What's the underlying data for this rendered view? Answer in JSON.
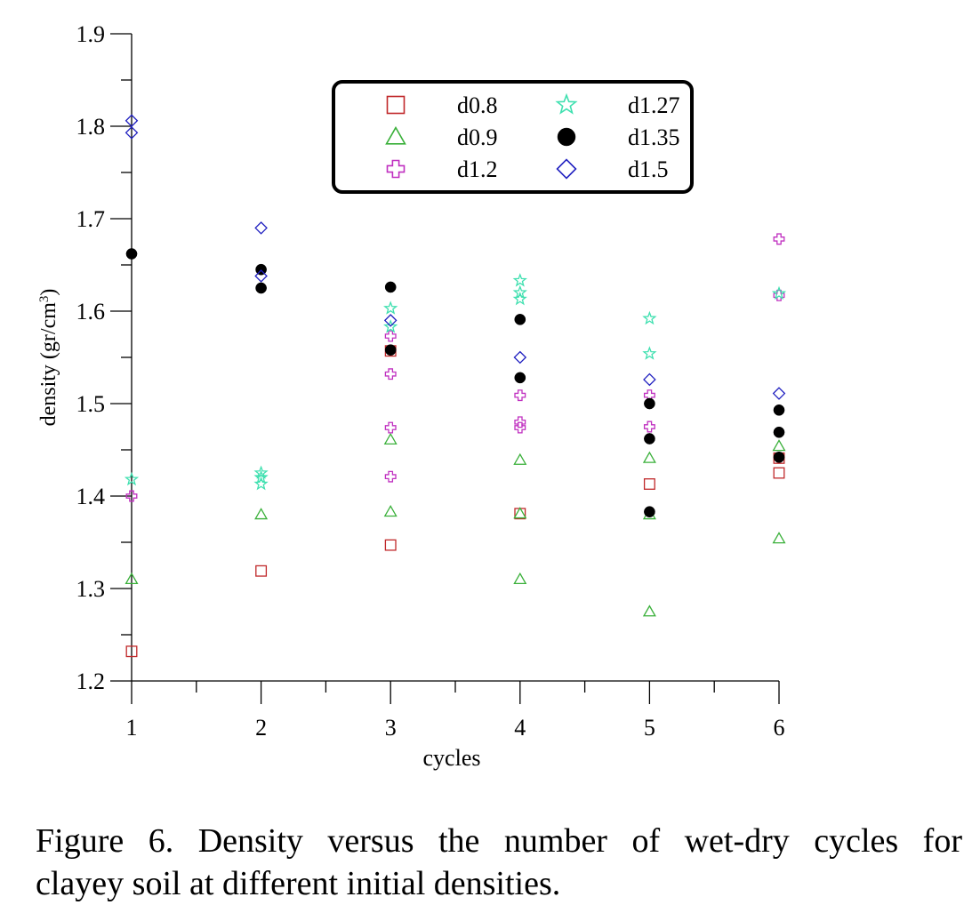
{
  "chart_data": {
    "type": "scatter",
    "xlabel": "cycles",
    "ylabel": "density (gr/cm",
    "ylabel_sup": "3",
    "ylabel_suffix": ")",
    "xlim": [
      1,
      6
    ],
    "ylim": [
      1.2,
      1.9
    ],
    "x_ticks": [
      "1",
      "2",
      "3",
      "4",
      "5",
      "6"
    ],
    "y_ticks": [
      "1.2",
      "1.3",
      "1.4",
      "1.5",
      "1.6",
      "1.7",
      "1.8",
      "1.9"
    ],
    "grid": false,
    "legend_position": "top-center",
    "series": [
      {
        "name": "d0.8",
        "marker": "square",
        "color": "#c0282a",
        "points": [
          [
            1,
            1.232
          ],
          [
            2,
            1.319
          ],
          [
            3,
            1.347
          ],
          [
            3,
            1.557
          ],
          [
            4,
            1.381
          ],
          [
            5,
            1.413
          ],
          [
            6,
            1.425
          ],
          [
            6,
            1.441
          ]
        ]
      },
      {
        "name": "d0.9",
        "marker": "triangle",
        "color": "#3ab03a",
        "points": [
          [
            1,
            1.31
          ],
          [
            2,
            1.38
          ],
          [
            3,
            1.383
          ],
          [
            3,
            1.461
          ],
          [
            4,
            1.31
          ],
          [
            4,
            1.381
          ],
          [
            4,
            1.439
          ],
          [
            5,
            1.275
          ],
          [
            5,
            1.38
          ],
          [
            5,
            1.441
          ],
          [
            6,
            1.354
          ],
          [
            6,
            1.454
          ]
        ]
      },
      {
        "name": "d1.2",
        "marker": "plus",
        "color": "#c030c0",
        "points": [
          [
            1,
            1.4
          ],
          [
            3,
            1.421
          ],
          [
            3,
            1.474
          ],
          [
            3,
            1.532
          ],
          [
            3,
            1.573
          ],
          [
            4,
            1.474
          ],
          [
            4,
            1.48
          ],
          [
            4,
            1.509
          ],
          [
            5,
            1.475
          ],
          [
            5,
            1.509
          ],
          [
            6,
            1.617
          ],
          [
            6,
            1.678
          ]
        ]
      },
      {
        "name": "d1.27",
        "marker": "star",
        "color": "#40e0b0",
        "points": [
          [
            1,
            1.418
          ],
          [
            2,
            1.413
          ],
          [
            2,
            1.42
          ],
          [
            2,
            1.425
          ],
          [
            3,
            1.583
          ],
          [
            3,
            1.603
          ],
          [
            4,
            1.613
          ],
          [
            4,
            1.62
          ],
          [
            4,
            1.633
          ],
          [
            5,
            1.554
          ],
          [
            5,
            1.592
          ],
          [
            6,
            1.619
          ]
        ]
      },
      {
        "name": "d1.35",
        "marker": "circle",
        "color": "#000000",
        "points": [
          [
            1,
            1.662
          ],
          [
            2,
            1.625
          ],
          [
            2,
            1.645
          ],
          [
            3,
            1.558
          ],
          [
            3,
            1.626
          ],
          [
            4,
            1.528
          ],
          [
            4,
            1.591
          ],
          [
            5,
            1.383
          ],
          [
            5,
            1.462
          ],
          [
            5,
            1.5
          ],
          [
            6,
            1.442
          ],
          [
            6,
            1.469
          ],
          [
            6,
            1.493
          ]
        ]
      },
      {
        "name": "d1.5",
        "marker": "diamond",
        "color": "#2020c0",
        "points": [
          [
            1,
            1.793
          ],
          [
            1,
            1.806
          ],
          [
            2,
            1.638
          ],
          [
            2,
            1.69
          ],
          [
            3,
            1.59
          ],
          [
            4,
            1.55
          ],
          [
            5,
            1.526
          ],
          [
            6,
            1.511
          ]
        ]
      }
    ]
  },
  "caption": {
    "line1": "Figure 6. Density versus the number of wet-dry cycles for",
    "line2": "clayey soil at different initial densities."
  }
}
